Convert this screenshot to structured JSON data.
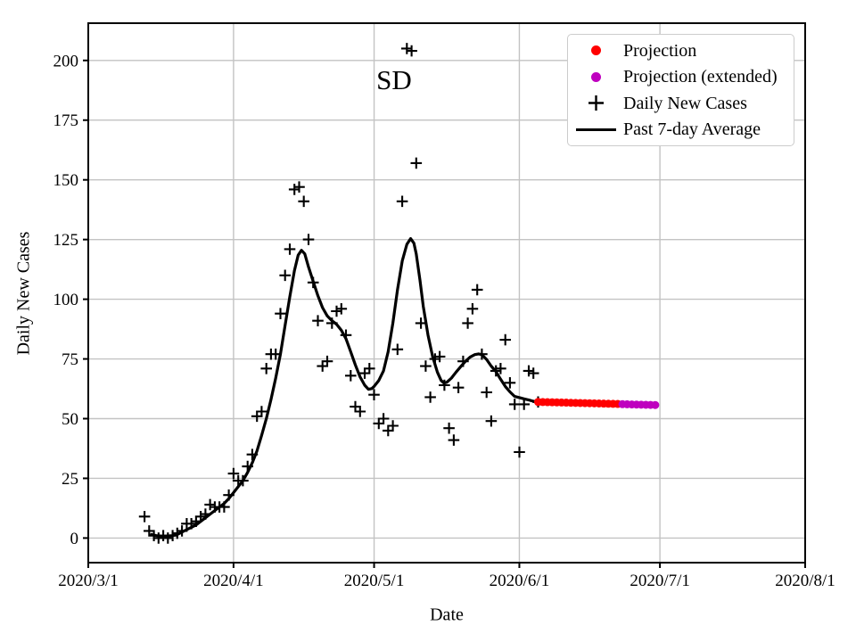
{
  "chart_data": {
    "type": "line+scatter",
    "title": "SD",
    "xlabel": "Date",
    "ylabel": "Daily New Cases",
    "grid": true,
    "x_axis": {
      "start_date": "2020-03-01",
      "end_date": "2020-08-01",
      "tick_days": [
        0,
        31,
        61,
        92,
        122,
        153
      ],
      "tick_labels": [
        "2020/3/1",
        "2020/4/1",
        "2020/5/1",
        "2020/6/1",
        "2020/7/1",
        "2020/8/1"
      ]
    },
    "y_axis": {
      "min": -10.3,
      "max": 215.6,
      "ticks": [
        0,
        25,
        50,
        75,
        100,
        125,
        150,
        175,
        200
      ]
    },
    "legend": {
      "position": "upper-right",
      "entries": [
        {
          "label": "Projection",
          "marker": "dot",
          "color": "#ff0000"
        },
        {
          "label": "Projection (extended)",
          "marker": "dot",
          "color": "#bf00bf"
        },
        {
          "label": "Daily New Cases",
          "marker": "plus",
          "color": "#000000"
        },
        {
          "label": "Past 7-day Average",
          "marker": "line",
          "color": "#000000"
        }
      ]
    },
    "series": {
      "daily_new_cases": {
        "marker": "plus",
        "color": "#000000",
        "start_date": "2020-03-13",
        "values": [
          9,
          3,
          1,
          0,
          1,
          0,
          1,
          2,
          3,
          6,
          6,
          7,
          9,
          10,
          14,
          13,
          13,
          13,
          18,
          27,
          24,
          24,
          30,
          35,
          51,
          53,
          71,
          77,
          77,
          94,
          110,
          121,
          146,
          147,
          141,
          125,
          107,
          91,
          72,
          74,
          90,
          95,
          96,
          85,
          68,
          55,
          53,
          69,
          71,
          60,
          48,
          50,
          45,
          47,
          79,
          141,
          205,
          204,
          157,
          90,
          72,
          59,
          75,
          76,
          64,
          46,
          41,
          63,
          74,
          90,
          96,
          104,
          77,
          61,
          49,
          70,
          71,
          83,
          65,
          56,
          36,
          56,
          70,
          69,
          57
        ]
      },
      "past_7day_average": {
        "marker": "line",
        "color": "#000000",
        "points_t_days_value": [
          [
            13.5,
            1.5
          ],
          [
            14.5,
            1
          ],
          [
            16,
            0.8
          ],
          [
            18,
            1
          ],
          [
            19,
            1.5
          ],
          [
            20,
            2.5
          ],
          [
            21,
            3.5
          ],
          [
            22,
            4.5
          ],
          [
            23,
            5.5
          ],
          [
            24,
            7
          ],
          [
            25,
            8.5
          ],
          [
            26,
            10
          ],
          [
            27,
            11.5
          ],
          [
            28,
            13
          ],
          [
            29,
            14.5
          ],
          [
            30,
            16.5
          ],
          [
            31,
            19
          ],
          [
            32,
            21.5
          ],
          [
            33,
            24
          ],
          [
            34,
            27.5
          ],
          [
            35,
            31.5
          ],
          [
            36,
            36.5
          ],
          [
            37,
            43
          ],
          [
            38,
            50
          ],
          [
            39,
            58
          ],
          [
            40,
            67
          ],
          [
            41,
            77
          ],
          [
            42,
            89
          ],
          [
            43,
            101
          ],
          [
            44,
            112
          ],
          [
            44.8,
            118.5
          ],
          [
            45.5,
            120.5
          ],
          [
            46.2,
            119
          ],
          [
            47,
            113.5
          ],
          [
            48,
            107.5
          ],
          [
            49,
            101.5
          ],
          [
            50,
            96.5
          ],
          [
            51,
            93
          ],
          [
            52,
            91
          ],
          [
            53,
            89.5
          ],
          [
            54,
            87
          ],
          [
            55,
            83.5
          ],
          [
            56,
            78
          ],
          [
            57,
            72.5
          ],
          [
            58,
            67.5
          ],
          [
            59,
            64
          ],
          [
            59.8,
            62.3
          ],
          [
            60.5,
            62.6
          ],
          [
            61,
            63.5
          ],
          [
            62,
            66
          ],
          [
            63,
            70
          ],
          [
            64,
            78
          ],
          [
            65,
            90
          ],
          [
            66,
            104
          ],
          [
            67,
            116
          ],
          [
            68,
            123
          ],
          [
            68.8,
            125.4
          ],
          [
            69.5,
            123.5
          ],
          [
            70,
            119
          ],
          [
            70.8,
            108
          ],
          [
            71.5,
            97
          ],
          [
            72.5,
            85
          ],
          [
            73.5,
            76
          ],
          [
            74.5,
            69.5
          ],
          [
            75.3,
            66
          ],
          [
            75.9,
            64.9
          ],
          [
            76.5,
            65.2
          ],
          [
            77.5,
            67
          ],
          [
            78.5,
            69.5
          ],
          [
            79.5,
            71.8
          ],
          [
            80.5,
            74
          ],
          [
            81.5,
            75.8
          ],
          [
            82.5,
            76.8
          ],
          [
            83.3,
            77.1
          ],
          [
            84,
            76.8
          ],
          [
            85,
            74.8
          ],
          [
            86,
            72
          ],
          [
            87,
            69.7
          ],
          [
            88,
            66.5
          ],
          [
            89,
            63.5
          ],
          [
            90,
            61.2
          ],
          [
            91,
            59.3
          ],
          [
            92,
            58.8
          ],
          [
            93,
            58.3
          ],
          [
            94,
            57.8
          ],
          [
            95,
            57.3
          ],
          [
            96,
            57
          ]
        ]
      },
      "projection": {
        "marker": "dot",
        "color": "#ff0000",
        "start_date": "2020-06-05",
        "values": [
          57.0,
          56.95,
          56.9,
          56.85,
          56.8,
          56.75,
          56.7,
          56.65,
          56.6,
          56.55,
          56.5,
          56.45,
          56.4,
          56.35,
          56.3,
          56.25,
          56.2,
          56.15
        ]
      },
      "projection_extended": {
        "marker": "dot",
        "color": "#bf00bf",
        "start_date": "2020-06-23",
        "values": [
          56.05,
          56.0,
          55.95,
          55.9,
          55.85,
          55.8,
          55.75,
          55.7
        ]
      }
    },
    "style": {
      "grid_color": "#c3c3c3",
      "spine_color": "#000000",
      "background": "#ffffff"
    }
  }
}
